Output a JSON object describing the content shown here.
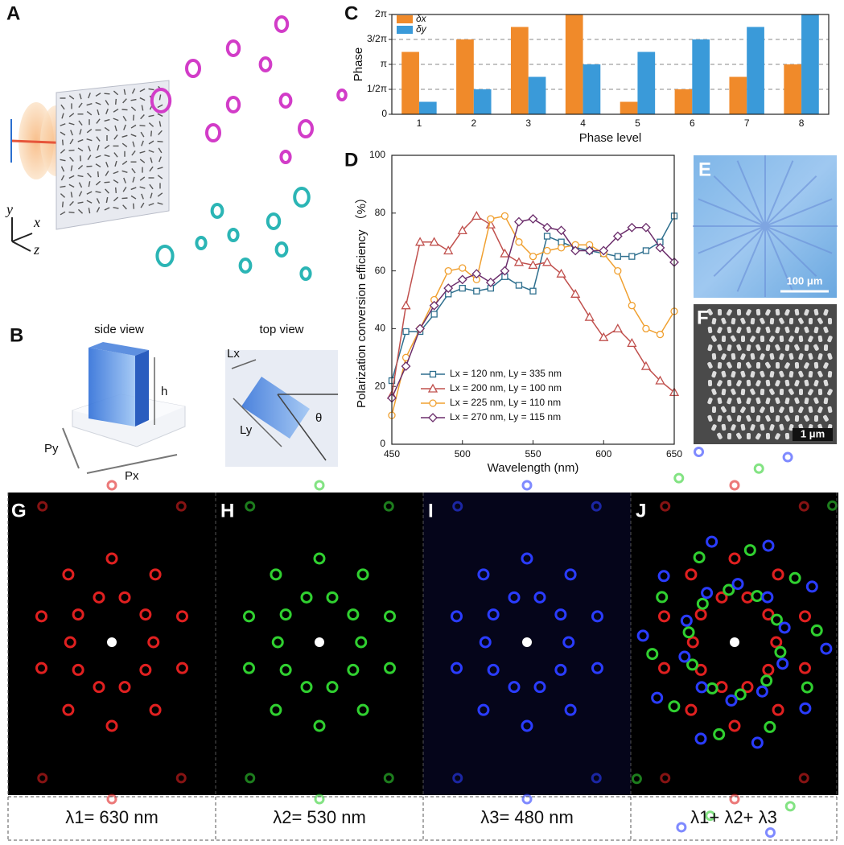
{
  "panel_labels": [
    "A",
    "B",
    "C",
    "D",
    "E",
    "F",
    "G",
    "H",
    "I",
    "J"
  ],
  "panel_a": {
    "axes": [
      "y",
      "x",
      "z"
    ]
  },
  "panel_b": {
    "side_view": "side view",
    "top_view": "top view",
    "labels": [
      "h",
      "Py",
      "Px",
      "Lx",
      "Ly",
      "θ"
    ]
  },
  "panel_e": {
    "scale_bar": "100 μm"
  },
  "panel_f": {
    "scale_bar": "1 μm"
  },
  "captions": [
    "λ1= 630 nm",
    "λ2= 530 nm",
    "λ3= 480 nm",
    "λ1+ λ2+ λ3"
  ],
  "chart_data": [
    {
      "type": "bar",
      "xlabel": "Phase level",
      "ylabel": "Phase",
      "categories": [
        "1",
        "2",
        "3",
        "4",
        "5",
        "6",
        "7",
        "8"
      ],
      "series": [
        {
          "name": "δx",
          "color": "#f08a2a",
          "values": [
            1.25,
            1.5,
            1.75,
            2,
            0.25,
            0.5,
            0.75,
            1
          ]
        },
        {
          "name": "δy",
          "color": "#3a9ad9",
          "values": [
            0.25,
            0.5,
            0.75,
            1,
            1.25,
            1.5,
            1.75,
            2
          ]
        }
      ],
      "ylim": [
        0,
        2
      ],
      "yticks": [
        0,
        {
          "value": 0.5,
          "label": "1/2π"
        },
        {
          "value": 1,
          "label": "π"
        },
        {
          "value": 1.5,
          "label": "3/2π"
        },
        {
          "value": 2,
          "label": "2π"
        }
      ],
      "grid": true,
      "legend": "top-left"
    },
    {
      "type": "line",
      "xlabel": "Wavelength (nm)",
      "ylabel": "Polarization conversion efficiency （%）",
      "x": [
        450,
        460,
        470,
        480,
        490,
        500,
        510,
        520,
        530,
        540,
        550,
        560,
        570,
        580,
        590,
        600,
        610,
        620,
        630,
        640,
        650
      ],
      "series": [
        {
          "name": "Lx = 120 nm, Ly = 335 nm",
          "color": "#2e6f8e",
          "marker": "square",
          "values": [
            22,
            39,
            39,
            45,
            52,
            54,
            53,
            54,
            58,
            55,
            53,
            72,
            70,
            68,
            67,
            66,
            65,
            65,
            67,
            70,
            79
          ]
        },
        {
          "name": "Lx = 200 nm, Ly = 100 nm",
          "color": "#c0504d",
          "marker": "triangle",
          "values": [
            17,
            48,
            70,
            70,
            67,
            74,
            79,
            76,
            66,
            63,
            62,
            63,
            59,
            52,
            44,
            37,
            40,
            35,
            27,
            22,
            18
          ]
        },
        {
          "name": "Lx = 225 nm, Ly = 110 nm",
          "color": "#f0a030",
          "marker": "circle",
          "values": [
            10,
            30,
            40,
            50,
            60,
            61,
            57,
            78,
            79,
            70,
            65,
            67,
            68,
            69,
            69,
            66,
            60,
            48,
            40,
            38,
            46
          ]
        },
        {
          "name": "Lx = 270 nm, Ly = 115 nm",
          "color": "#6b2d6b",
          "marker": "diamond",
          "values": [
            16,
            27,
            40,
            48,
            54,
            57,
            59,
            56,
            60,
            77,
            78,
            75,
            74,
            67,
            67,
            67,
            72,
            75,
            75,
            68,
            63
          ]
        }
      ],
      "xlim": [
        450,
        650
      ],
      "xticks": [
        450,
        500,
        550,
        600,
        650
      ],
      "ylim": [
        0,
        100
      ],
      "yticks": [
        0,
        20,
        40,
        60,
        80,
        100
      ],
      "legend": "lower-left"
    }
  ]
}
